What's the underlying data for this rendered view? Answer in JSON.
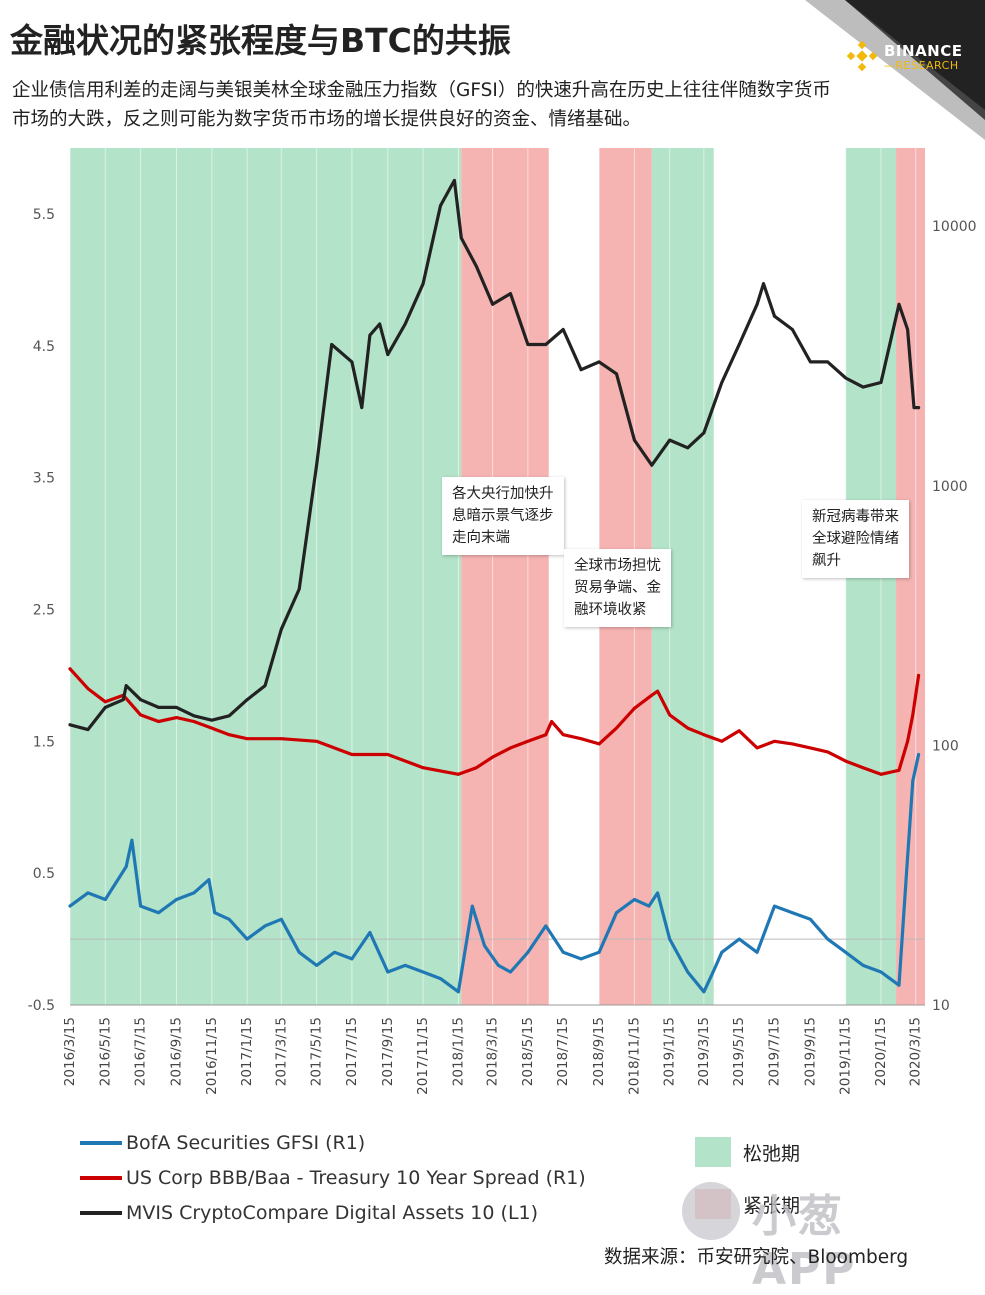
{
  "header": {
    "title": "金融状况的紧张程度与BTC的共振",
    "subtitle": "企业债信用利差的走阔与美银美林全球金融压力指数（GFSI）的快速升高在历史上往往伴随数字货币市场的大跌，反之则可能为数字货币市场的增长提供良好的资金、情绪基础。"
  },
  "branding": {
    "logo_name": "BINANCE",
    "logo_sub": "—RESEARCH",
    "logo_color": "#f0b90b",
    "watermark": "小葱 APP"
  },
  "source": "数据来源：币安研究院、Bloomberg",
  "colors": {
    "relax": "#b3e3c8",
    "tight": "#f5b3b1",
    "gfsi": "#1f78b4",
    "spread": "#cc0000",
    "mvis": "#222222"
  },
  "chart_data": {
    "type": "line",
    "x_axis": {
      "ticks": [
        "2016/3/15",
        "2016/5/15",
        "2016/7/15",
        "2016/9/15",
        "2016/11/15",
        "2017/1/15",
        "2017/3/15",
        "2017/5/15",
        "2017/7/15",
        "2017/9/15",
        "2017/11/15",
        "2018/1/15",
        "2018/3/15",
        "2018/5/15",
        "2018/7/15",
        "2018/9/15",
        "2018/11/15",
        "2019/1/15",
        "2019/3/15",
        "2019/5/15",
        "2019/7/15",
        "2019/9/15",
        "2019/11/15",
        "2020/1/15",
        "2020/3/15"
      ]
    },
    "right_axis": {
      "name": "R1",
      "ticks": [
        -0.5,
        0.5,
        1.5,
        2.5,
        3.5,
        4.5,
        5.5
      ],
      "range": [
        -0.5,
        6.0
      ]
    },
    "left_axis": {
      "name": "L1",
      "scale": "log",
      "ticks": [
        10,
        100,
        1000,
        10000
      ],
      "range": [
        10,
        20000
      ]
    },
    "regimes": [
      {
        "type": "relax",
        "start": "2016/3/15",
        "end": "2018/1/20"
      },
      {
        "type": "tight",
        "start": "2018/1/20",
        "end": "2018/6/20"
      },
      {
        "type": "tight",
        "start": "2018/9/15",
        "end": "2018/12/15"
      },
      {
        "type": "relax",
        "start": "2018/12/15",
        "end": "2019/4/1"
      },
      {
        "type": "relax",
        "start": "2019/11/15",
        "end": "2020/2/10"
      },
      {
        "type": "tight",
        "start": "2020/2/10",
        "end": "2020/3/31"
      }
    ],
    "regime_labels": {
      "relax": "松弛期",
      "tight": "紧张期"
    },
    "series": [
      {
        "name": "BofA Securities GFSI  (R1)",
        "key": "gfsi",
        "axis": "right",
        "x": [
          "2016/3/15",
          "2016/4/15",
          "2016/5/15",
          "2016/6/20",
          "2016/6/30",
          "2016/7/15",
          "2016/8/15",
          "2016/9/15",
          "2016/10/15",
          "2016/11/10",
          "2016/11/20",
          "2016/12/15",
          "2017/1/15",
          "2017/2/15",
          "2017/3/15",
          "2017/4/15",
          "2017/5/15",
          "2017/6/15",
          "2017/7/15",
          "2017/8/15",
          "2017/9/15",
          "2017/10/15",
          "2017/11/15",
          "2017/12/15",
          "2018/1/15",
          "2018/2/8",
          "2018/3/1",
          "2018/3/25",
          "2018/4/15",
          "2018/5/15",
          "2018/6/15",
          "2018/7/15",
          "2018/8/15",
          "2018/9/15",
          "2018/10/15",
          "2018/11/15",
          "2018/12/10",
          "2018/12/25",
          "2019/1/15",
          "2019/2/15",
          "2019/3/15",
          "2019/3/31",
          "2019/4/15",
          "2019/5/15",
          "2019/6/15",
          "2019/7/15",
          "2019/8/15",
          "2019/9/15",
          "2019/10/15",
          "2019/11/15",
          "2019/12/15",
          "2020/1/15",
          "2020/2/15",
          "2020/2/28",
          "2020/3/10",
          "2020/3/20"
        ],
        "values": [
          0.25,
          0.35,
          0.3,
          0.55,
          0.75,
          0.25,
          0.2,
          0.3,
          0.35,
          0.45,
          0.2,
          0.15,
          0.0,
          0.1,
          0.15,
          -0.1,
          -0.2,
          -0.1,
          -0.15,
          0.05,
          -0.25,
          -0.2,
          -0.25,
          -0.3,
          -0.4,
          0.25,
          -0.05,
          -0.2,
          -0.25,
          -0.1,
          0.1,
          -0.1,
          -0.15,
          -0.1,
          0.2,
          0.3,
          0.25,
          0.35,
          0.0,
          -0.25,
          -0.4,
          -0.25,
          -0.1,
          0.0,
          -0.1,
          0.25,
          0.2,
          0.15,
          0.0,
          -0.1,
          -0.2,
          -0.25,
          -0.35,
          0.5,
          1.2,
          1.4
        ]
      },
      {
        "name": "US Corp BBB/Baa - Treasury 10 Year Spread  (R1)",
        "key": "spread",
        "axis": "right",
        "x": [
          "2016/3/15",
          "2016/4/15",
          "2016/5/15",
          "2016/6/15",
          "2016/7/15",
          "2016/8/15",
          "2016/9/15",
          "2016/10/15",
          "2016/11/15",
          "2016/12/15",
          "2017/1/15",
          "2017/3/15",
          "2017/5/15",
          "2017/7/15",
          "2017/9/15",
          "2017/11/15",
          "2018/1/15",
          "2018/2/15",
          "2018/3/15",
          "2018/4/15",
          "2018/5/15",
          "2018/6/15",
          "2018/6/25",
          "2018/7/15",
          "2018/8/15",
          "2018/9/15",
          "2018/10/15",
          "2018/11/15",
          "2018/12/15",
          "2018/12/25",
          "2019/1/15",
          "2019/2/15",
          "2019/3/15",
          "2019/4/15",
          "2019/5/15",
          "2019/6/15",
          "2019/7/15",
          "2019/8/15",
          "2019/9/15",
          "2019/10/15",
          "2019/11/15",
          "2019/12/15",
          "2020/1/15",
          "2020/2/15",
          "2020/3/1",
          "2020/3/10",
          "2020/3/20"
        ],
        "values": [
          2.05,
          1.9,
          1.8,
          1.85,
          1.7,
          1.65,
          1.68,
          1.65,
          1.6,
          1.55,
          1.52,
          1.52,
          1.5,
          1.4,
          1.4,
          1.3,
          1.25,
          1.3,
          1.38,
          1.45,
          1.5,
          1.55,
          1.65,
          1.55,
          1.52,
          1.48,
          1.6,
          1.75,
          1.85,
          1.88,
          1.7,
          1.6,
          1.55,
          1.5,
          1.58,
          1.45,
          1.5,
          1.48,
          1.45,
          1.42,
          1.35,
          1.3,
          1.25,
          1.28,
          1.5,
          1.7,
          2.0
        ]
      },
      {
        "name": "MVIS CryptoCompare Digital Assets 10  (L1)",
        "key": "mvis",
        "axis": "left",
        "x": [
          "2016/3/15",
          "2016/4/15",
          "2016/5/15",
          "2016/6/15",
          "2016/6/20",
          "2016/7/15",
          "2016/8/15",
          "2016/9/15",
          "2016/10/15",
          "2016/11/15",
          "2016/12/15",
          "2017/1/15",
          "2017/2/15",
          "2017/3/15",
          "2017/4/15",
          "2017/5/15",
          "2017/6/10",
          "2017/7/15",
          "2017/8/1",
          "2017/8/15",
          "2017/9/1",
          "2017/9/15",
          "2017/10/15",
          "2017/11/15",
          "2017/12/15",
          "2018/1/8",
          "2018/1/20",
          "2018/2/15",
          "2018/3/15",
          "2018/4/15",
          "2018/5/15",
          "2018/6/15",
          "2018/7/15",
          "2018/8/15",
          "2018/9/15",
          "2018/10/15",
          "2018/11/15",
          "2018/12/15",
          "2019/1/15",
          "2019/2/15",
          "2019/3/15",
          "2019/4/15",
          "2019/5/15",
          "2019/6/15",
          "2019/6/26",
          "2019/7/15",
          "2019/8/15",
          "2019/9/15",
          "2019/10/15",
          "2019/11/15",
          "2019/12/15",
          "2020/1/15",
          "2020/2/15",
          "2020/3/1",
          "2020/3/12",
          "2020/3/20"
        ],
        "values": [
          120,
          115,
          140,
          150,
          170,
          150,
          140,
          140,
          130,
          125,
          130,
          150,
          170,
          280,
          400,
          1200,
          3500,
          3000,
          2000,
          3800,
          4200,
          3200,
          4200,
          6000,
          12000,
          15000,
          9000,
          7000,
          5000,
          5500,
          3500,
          3500,
          4000,
          2800,
          3000,
          2700,
          1500,
          1200,
          1500,
          1400,
          1600,
          2500,
          3500,
          5000,
          6000,
          4500,
          4000,
          3000,
          3000,
          2600,
          2400,
          2500,
          5000,
          4000,
          2000,
          2000
        ]
      }
    ],
    "annotations": [
      "各大央行加快升\n息暗示景气逐步\n走向末端",
      "全球市场担忧\n贸易争端、金\n融环境收紧",
      "新冠病毒带来\n全球避险情绪\n飙升"
    ]
  }
}
